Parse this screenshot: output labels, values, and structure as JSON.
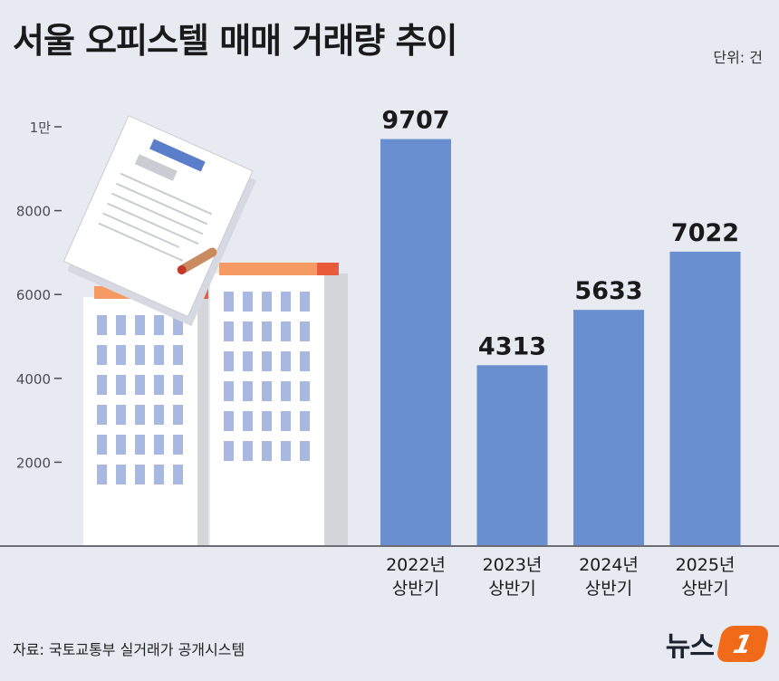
{
  "header": {
    "title": "서울 오피스텔 매매 거래량 추이",
    "unit": "단위: 건"
  },
  "footer": {
    "source": "자료: 국토교통부 실거래가 공개시스템",
    "logo_text": "뉴스",
    "logo_badge": "1"
  },
  "colors": {
    "bar": "#6a8fd0",
    "background": "#e7eaf1",
    "axis": "#6b6e74"
  },
  "chart_data": {
    "type": "bar",
    "title": "서울 오피스텔 매매 거래량 추이",
    "unit": "단위: 건",
    "categories": [
      [
        "2022년",
        "상반기"
      ],
      [
        "2023년",
        "상반기"
      ],
      [
        "2024년",
        "상반기"
      ],
      [
        "2025년",
        "상반기"
      ]
    ],
    "values": [
      9707,
      4313,
      5633,
      7022
    ],
    "value_labels": [
      "9707",
      "4313",
      "5633",
      "7022"
    ],
    "y_ticks": [
      {
        "value": 2000,
        "label": "2000"
      },
      {
        "value": 4000,
        "label": "4000"
      },
      {
        "value": 6000,
        "label": "6000"
      },
      {
        "value": 8000,
        "label": "8000"
      },
      {
        "value": 10000,
        "label": "1만"
      }
    ],
    "ylim": [
      0,
      10000
    ],
    "grid": false
  }
}
